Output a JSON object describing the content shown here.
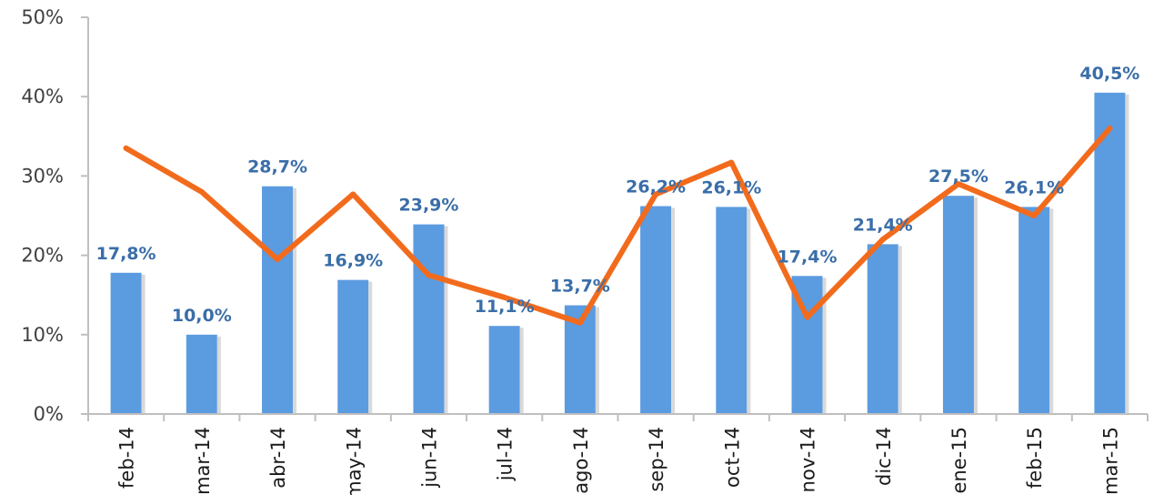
{
  "chart_data": {
    "type": "bar",
    "categories": [
      "feb-14",
      "mar-14",
      "abr-14",
      "may-14",
      "jun-14",
      "jul-14",
      "ago-14",
      "sep-14",
      "oct-14",
      "nov-14",
      "dic-14",
      "ene-15",
      "feb-15",
      "mar-15"
    ],
    "series": [
      {
        "type": "bar",
        "values": [
          17.8,
          10.0,
          28.7,
          16.9,
          23.9,
          11.1,
          13.7,
          26.2,
          26.1,
          17.4,
          21.4,
          27.5,
          26.1,
          40.5
        ],
        "labels": [
          "17,8%",
          "10,0%",
          "28,7%",
          "16,9%",
          "23,9%",
          "11,1%",
          "13,7%",
          "26,2%",
          "26,1%",
          "17,4%",
          "21,4%",
          "27,5%",
          "26,1%",
          "40,5%"
        ],
        "color": "#5b9be0"
      },
      {
        "type": "line",
        "values": [
          33.5,
          28.0,
          19.5,
          27.7,
          17.5,
          14.7,
          11.5,
          27.7,
          31.7,
          12.2,
          22.0,
          29.0,
          25.0,
          36.0
        ],
        "color": "#f26b1d"
      }
    ],
    "y_ticks": [
      "0%",
      "10%",
      "20%",
      "30%",
      "40%",
      "50%"
    ],
    "ylim": [
      0,
      50
    ],
    "grid": false,
    "legend": "none"
  }
}
